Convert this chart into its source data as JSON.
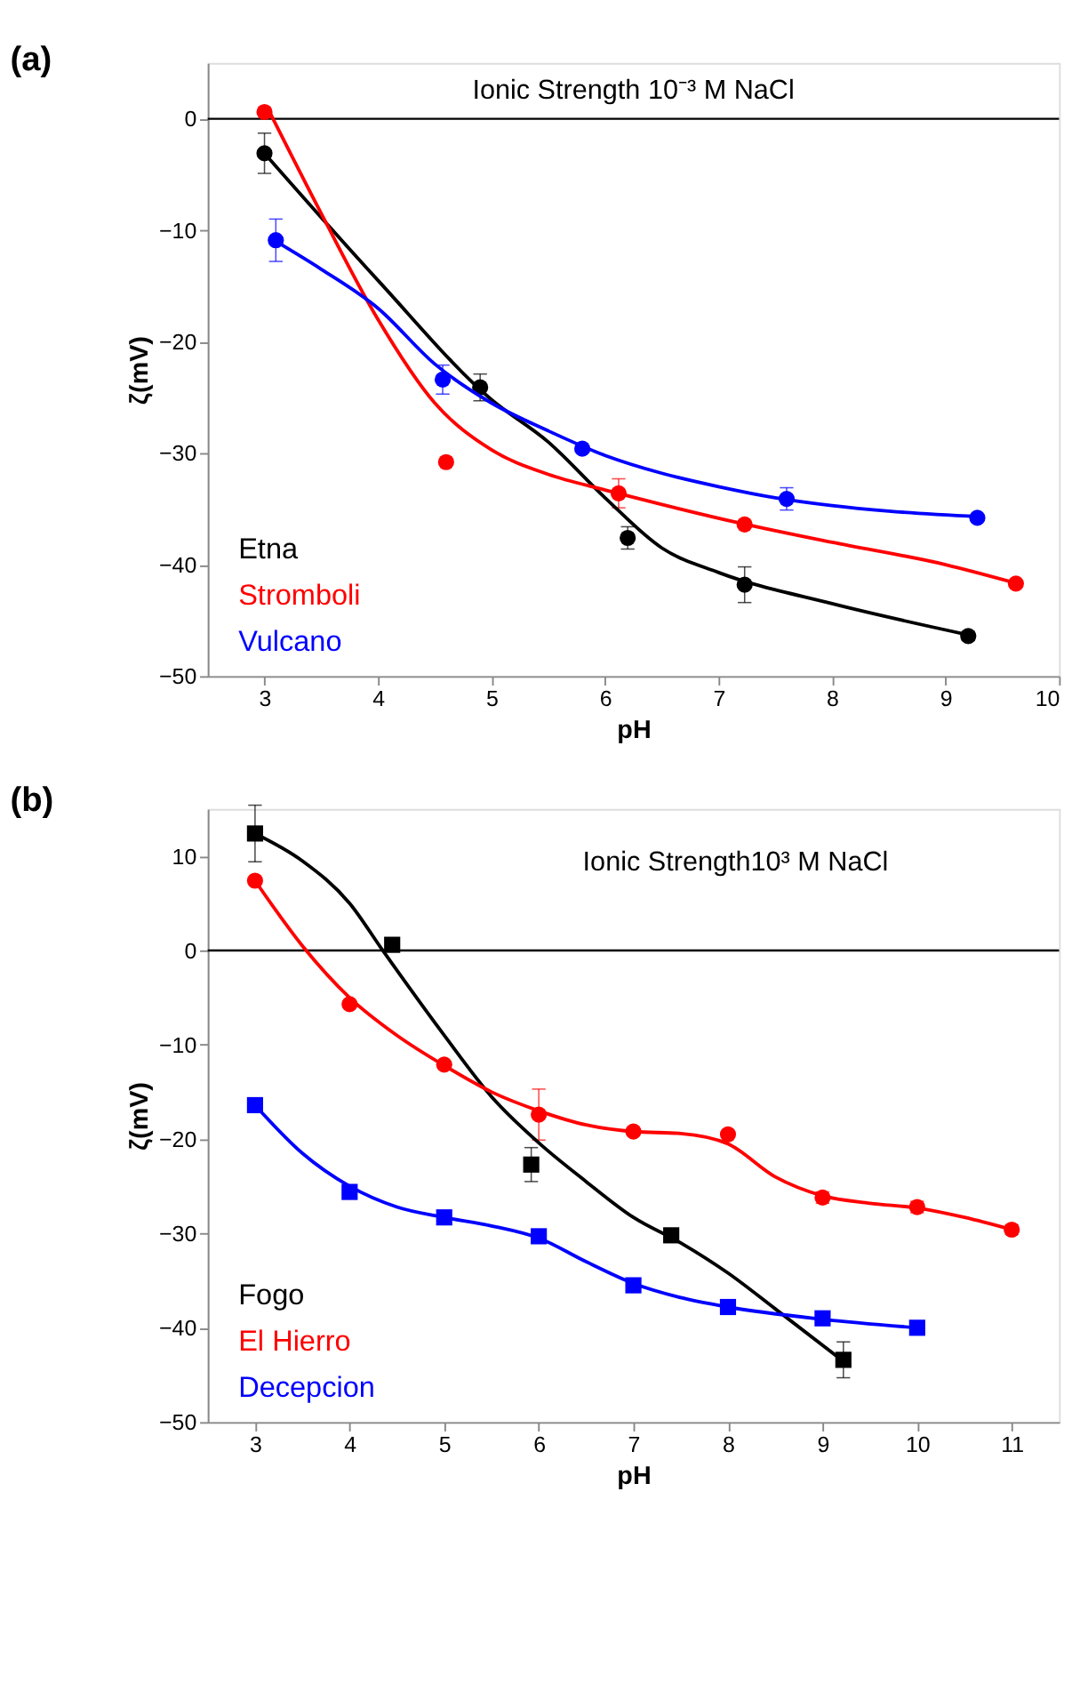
{
  "chart_data": [
    {
      "type": "scatter",
      "title": "(a)",
      "xlabel": "pH",
      "ylabel": "ζ(mV)",
      "annotations": [
        "Ionic Strength 10⁻³ M NaCl"
      ],
      "xlim": [
        2.5,
        10
      ],
      "ylim": [
        -50,
        5
      ],
      "xticks": [
        3,
        4,
        5,
        6,
        7,
        8,
        9,
        10
      ],
      "yticks": [
        -50,
        -40,
        -30,
        -20,
        -10,
        0
      ],
      "legend": "bottom left",
      "ref_lines": [
        {
          "axis": "y",
          "value": 0,
          "color": "#000000"
        }
      ],
      "series": [
        {
          "name": "Etna",
          "color": "#000000",
          "marker": "circle",
          "x": [
            3,
            4.9,
            6.2,
            7.23,
            9.2
          ],
          "values": [
            -3.1,
            -24.1,
            -37.6,
            -41.8,
            -46.4
          ],
          "errors": [
            1.8,
            1.2,
            1.0,
            1.6,
            0.4
          ]
        },
        {
          "name": "Stromboli",
          "color": "#ff0000",
          "marker": "circle",
          "x": [
            3,
            4.6,
            6.12,
            7.23,
            9.62
          ],
          "values": [
            0.6,
            -30.8,
            -33.6,
            -36.4,
            -41.7
          ],
          "errors": [
            null,
            null,
            1.3,
            null,
            null
          ]
        },
        {
          "name": "Vulcano",
          "color": "#0000ff",
          "marker": "circle",
          "x": [
            3.1,
            4.57,
            5.8,
            7.6,
            9.28
          ],
          "values": [
            -10.9,
            -23.4,
            -29.6,
            -34.1,
            -35.8
          ],
          "errors": [
            1.9,
            1.3,
            null,
            1.0,
            null
          ]
        },
        {
          "type": "line",
          "color": "#000000",
          "line_style": "solid",
          "x": [
            3,
            4,
            5,
            5.5,
            6,
            6.5,
            7,
            8,
            9.2
          ],
          "values": [
            -3.1,
            -14.5,
            -25.2,
            -29,
            -34,
            -38.5,
            -40.7,
            -43.5,
            -46.3
          ]
        },
        {
          "type": "line",
          "color": "#ff0000",
          "line_style": "solid",
          "x": [
            3.05,
            3.5,
            4,
            4.5,
            5,
            5.5,
            6,
            6.5,
            7.2,
            8,
            9,
            9.6
          ],
          "values": [
            0.5,
            -8.5,
            -18,
            -25.5,
            -29.7,
            -31.9,
            -33.3,
            -34.6,
            -36.3,
            -38,
            -40,
            -41.6
          ]
        },
        {
          "type": "line",
          "color": "#0000ff",
          "line_style": "solid",
          "x": [
            3.1,
            3.5,
            4,
            4.5,
            5,
            5.5,
            6,
            6.5,
            7,
            7.5,
            8,
            8.5,
            9.3
          ],
          "values": [
            -11,
            -13.5,
            -17,
            -22,
            -25.5,
            -28,
            -30.2,
            -31.8,
            -33,
            -34,
            -34.7,
            -35.2,
            -35.7
          ]
        }
      ]
    },
    {
      "type": "scatter",
      "title": "(b)",
      "xlabel": "pH",
      "ylabel": "ζ(mV)",
      "annotations": [
        "Ionic Strength10³ M NaCl"
      ],
      "xlim": [
        2.5,
        11.5
      ],
      "ylim": [
        -50,
        15
      ],
      "xticks": [
        3,
        4,
        5,
        6,
        7,
        8,
        9,
        10,
        11
      ],
      "yticks": [
        -50,
        -40,
        -30,
        -20,
        -10,
        0,
        10
      ],
      "legend": "bottom left",
      "ref_lines": [
        {
          "axis": "y",
          "value": 0,
          "color": "#000000"
        }
      ],
      "series": [
        {
          "name": "Fogo",
          "color": "#000000",
          "marker": "square",
          "x": [
            3,
            4.45,
            5.92,
            7.4,
            9.22
          ],
          "values": [
            12.4,
            0.6,
            -22.7,
            -30.2,
            -43.4
          ],
          "errors": [
            3,
            null,
            1.8,
            null,
            1.9
          ]
        },
        {
          "name": "El Hierro",
          "color": "#ff0000",
          "marker": "circle",
          "x": [
            3,
            4,
            5,
            6,
            7,
            8,
            9,
            10,
            11
          ],
          "values": [
            7.4,
            -5.7,
            -12.1,
            -17.4,
            -19.2,
            -19.5,
            -26.2,
            -27.2,
            -29.6
          ],
          "errors": [
            null,
            null,
            null,
            2.7,
            null,
            null,
            0.6,
            0.6,
            0.5
          ]
        },
        {
          "name": "Decepcion",
          "color": "#0000ff",
          "marker": "square",
          "x": [
            3,
            4,
            5,
            6,
            7,
            8,
            9,
            10
          ],
          "values": [
            -16.4,
            -25.6,
            -28.3,
            -30.3,
            -35.5,
            -37.8,
            -39,
            -40
          ]
        },
        {
          "type": "line",
          "color": "#000000",
          "line_style": "solid",
          "x": [
            3,
            3.5,
            4,
            4.35,
            5,
            5.5,
            6,
            6.5,
            7,
            7.5,
            8,
            8.5,
            9.2
          ],
          "values": [
            12.4,
            9.5,
            5,
            0,
            -9,
            -15.5,
            -20.4,
            -24.5,
            -28.3,
            -31,
            -34.2,
            -38,
            -43.4
          ]
        },
        {
          "type": "line",
          "color": "#ff0000",
          "line_style": "solid",
          "x": [
            3,
            3.5,
            4,
            4.5,
            5,
            5.5,
            6,
            6.5,
            7,
            7.5,
            8,
            8.5,
            9,
            9.5,
            10,
            10.5,
            11
          ],
          "values": [
            7.4,
            0.5,
            -5,
            -9,
            -12.2,
            -15,
            -17,
            -18.5,
            -19.2,
            -19.4,
            -20.5,
            -24,
            -26,
            -26.8,
            -27.3,
            -28.3,
            -29.6
          ]
        },
        {
          "type": "line",
          "color": "#0000ff",
          "line_style": "solid",
          "x": [
            3,
            3.5,
            4,
            4.5,
            5,
            5.5,
            6,
            6.5,
            7,
            7.5,
            8,
            9,
            10
          ],
          "values": [
            -16.4,
            -21.5,
            -25,
            -27.2,
            -28.3,
            -29.2,
            -30.5,
            -33,
            -35.3,
            -36.8,
            -37.8,
            -39.1,
            -40
          ]
        }
      ]
    }
  ]
}
